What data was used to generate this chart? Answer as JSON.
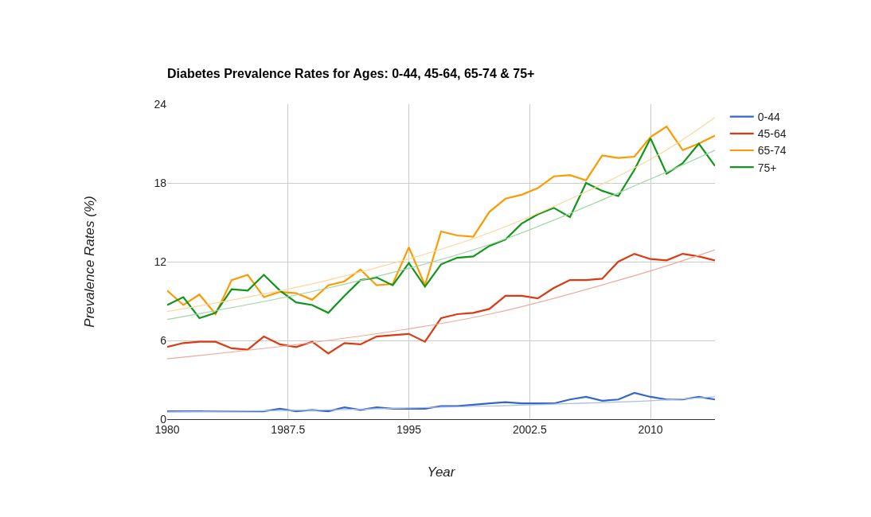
{
  "chart_data": {
    "type": "line",
    "title": "Diabetes Prevalence Rates for Ages: 0-44, 45-64, 65-74 & 75+",
    "xlabel": "Year",
    "ylabel": "Prevalence Rates (%)",
    "x": [
      1980,
      1981,
      1982,
      1983,
      1984,
      1985,
      1986,
      1987,
      1988,
      1989,
      1990,
      1991,
      1992,
      1993,
      1994,
      1995,
      1996,
      1997,
      1998,
      1999,
      2000,
      2001,
      2002,
      2003,
      2004,
      2005,
      2006,
      2007,
      2008,
      2009,
      2010,
      2011,
      2012,
      2013,
      2014
    ],
    "series": [
      {
        "name": "0-44",
        "color": "#3366cc",
        "values": [
          0.6,
          0.6,
          0.6,
          0.6,
          0.6,
          0.6,
          0.6,
          0.8,
          0.6,
          0.7,
          0.6,
          0.9,
          0.7,
          0.9,
          0.8,
          0.8,
          0.8,
          1.0,
          1.0,
          1.1,
          1.2,
          1.3,
          1.2,
          1.2,
          1.2,
          1.5,
          1.7,
          1.4,
          1.5,
          2.0,
          1.7,
          1.5,
          1.5,
          1.7,
          1.5
        ]
      },
      {
        "name": "45-64",
        "color": "#dc3912",
        "values": [
          5.5,
          5.8,
          5.9,
          5.9,
          5.4,
          5.3,
          6.3,
          5.7,
          5.5,
          5.9,
          5.0,
          5.8,
          5.7,
          6.3,
          6.4,
          6.5,
          5.9,
          7.7,
          8.0,
          8.1,
          8.4,
          9.4,
          9.4,
          9.2,
          10.0,
          10.6,
          10.6,
          10.7,
          12.0,
          12.6,
          12.2,
          12.1,
          12.6,
          12.4,
          12.1
        ]
      },
      {
        "name": "65-74",
        "color": "#ff9900",
        "values": [
          9.8,
          8.7,
          9.5,
          8.0,
          10.6,
          11.0,
          9.3,
          9.7,
          9.6,
          9.1,
          10.2,
          10.5,
          11.4,
          10.2,
          10.3,
          13.1,
          10.2,
          14.3,
          14.0,
          13.9,
          15.8,
          16.8,
          17.1,
          17.6,
          18.5,
          18.6,
          18.2,
          20.1,
          19.9,
          20.0,
          21.5,
          22.3,
          20.5,
          21.0,
          21.6
        ]
      },
      {
        "name": "75+",
        "color": "#109618",
        "values": [
          8.7,
          9.3,
          7.7,
          8.1,
          9.9,
          9.8,
          11.0,
          9.8,
          8.9,
          8.7,
          8.1,
          9.4,
          10.6,
          10.8,
          10.2,
          11.9,
          10.1,
          11.8,
          12.3,
          12.4,
          13.2,
          13.7,
          14.9,
          15.6,
          16.1,
          15.4,
          18.0,
          17.4,
          17.0,
          19.0,
          21.4,
          18.7,
          19.5,
          21.0,
          19.3
        ]
      },
      {
        "type": "line",
        "color": "#a9bde6",
        "x": [
          1980,
          1990,
          2000,
          2010,
          2014
        ],
        "values": [
          0.55,
          0.7,
          1.0,
          1.4,
          1.7
        ]
      },
      {
        "type": "line",
        "color": "#f0a995",
        "x": [
          1980,
          1990,
          2000,
          2010,
          2014
        ],
        "values": [
          4.6,
          6.0,
          8.0,
          11.3,
          12.9
        ]
      },
      {
        "type": "line",
        "color": "#ffd699",
        "x": [
          1980,
          1990,
          2000,
          2010,
          2014
        ],
        "values": [
          8.2,
          10.6,
          14.2,
          19.8,
          23.0
        ]
      },
      {
        "type": "line",
        "color": "#9fd5a2",
        "x": [
          1980,
          1990,
          2000,
          2010,
          2014
        ],
        "values": [
          7.6,
          10.0,
          13.3,
          18.3,
          20.5
        ]
      }
    ],
    "xlim": [
      1980,
      2014
    ],
    "xticks": [
      1980,
      {
        "value": 1987.5,
        "label": "1987.5"
      },
      1995,
      {
        "value": 2002.5,
        "label": "2002.5"
      },
      2010
    ],
    "ylim": [
      0,
      24
    ],
    "yticks": [
      0,
      6,
      12,
      18,
      24
    ],
    "grid": true,
    "legend": "top right",
    "marker": "none",
    "line_style": "solid"
  }
}
